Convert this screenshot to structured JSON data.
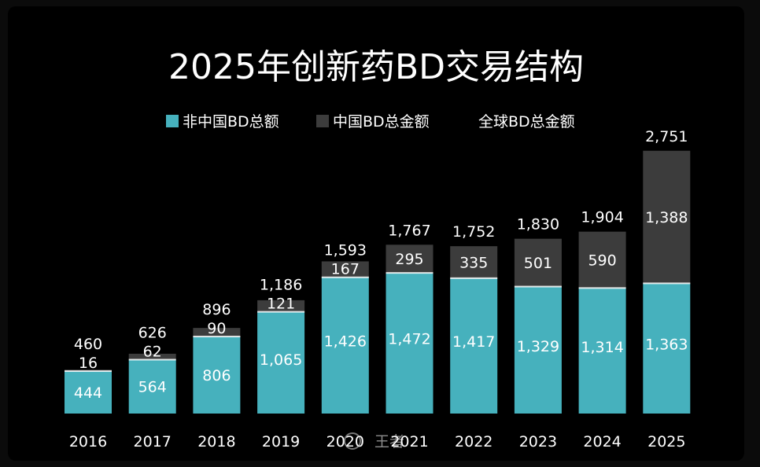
{
  "chart_data": {
    "type": "bar",
    "stacked": true,
    "title": "2025年创新药BD交易结构",
    "categories": [
      "2016",
      "2017",
      "2018",
      "2019",
      "2020",
      "2021",
      "2022",
      "2023",
      "2024",
      "2025"
    ],
    "series": [
      {
        "name": "非中国BD总额",
        "color": "#46b1bd",
        "values": [
          444,
          564,
          806,
          1065,
          1426,
          1472,
          1417,
          1329,
          1314,
          1363
        ]
      },
      {
        "name": "中国BD总金额",
        "color": "#3c3c3c",
        "values": [
          16,
          62,
          90,
          121,
          167,
          295,
          335,
          501,
          590,
          1388
        ]
      }
    ],
    "totals_series_name": "全球BD总金额",
    "totals": [
      460,
      626,
      896,
      1186,
      1593,
      1767,
      1752,
      1830,
      1904,
      2751
    ],
    "ylim": [
      0,
      2900
    ],
    "legend_position": "top-center",
    "grid": false,
    "xlabel": "",
    "ylabel": ""
  },
  "watermark": "王者"
}
